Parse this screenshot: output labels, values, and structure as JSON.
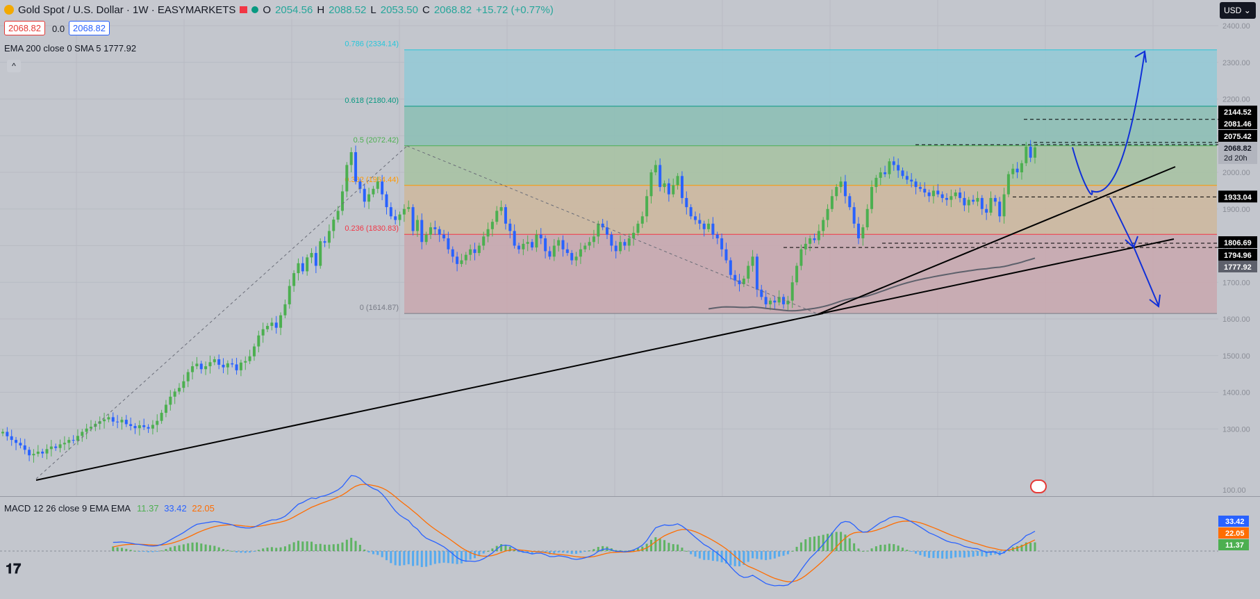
{
  "header": {
    "symbol": "Gold Spot / U.S. Dollar · 1W · EASYMARKETS",
    "o_label": "O",
    "o_val": "2054.56",
    "h_label": "H",
    "h_val": "2088.52",
    "l_label": "L",
    "l_val": "2053.50",
    "c_label": "C",
    "c_val": "2068.82",
    "change": "+15.72 (+0.77%)",
    "sell_price": "2068.82",
    "spread": "0.0",
    "buy_price": "2068.82"
  },
  "ema_legend": "EMA 200 close 0 SMA 5   1777.92",
  "macd_legend": {
    "label": "MACD 12 26 close 9 EMA EMA",
    "hist": "11.37",
    "macd": "33.42",
    "signal": "22.05"
  },
  "currency": "USD",
  "chart_data": {
    "type": "candlestick",
    "title": "Gold Spot / U.S. Dollar · 1W · EASYMARKETS",
    "price_axis": {
      "ylim": [
        1200,
        2450
      ],
      "ticks": [
        "2400.00",
        "2300.00",
        "2200.00",
        "2100.00",
        "2000.00",
        "1900.00",
        "1800.00",
        "1700.00",
        "1600.00",
        "1500.00",
        "1400.00",
        "1300.00"
      ]
    },
    "macd_axis": {
      "ylim": [
        -130,
        130
      ],
      "ticks": [
        "100.00"
      ]
    },
    "fibonacci": [
      {
        "label": "0.786 (2334.14)",
        "value": 2334.14,
        "color": "#26c6da",
        "fill": "#96c9d6"
      },
      {
        "label": "0.618 (2180.40)",
        "value": 2180.4,
        "color": "#089981",
        "fill": "#8ebfb6"
      },
      {
        "label": "0.5 (2072.42)",
        "value": 2072.42,
        "color": "#4caf50",
        "fill": "#a8c2a4"
      },
      {
        "label": "0.382 (1964.44)",
        "value": 1964.44,
        "color": "#ff9800",
        "fill": "#cdb8a0"
      },
      {
        "label": "0.236 (1830.83)",
        "value": 1830.83,
        "color": "#f23645",
        "fill": "#c9a9b0"
      },
      {
        "label": "0 (1614.87)",
        "value": 1614.87,
        "color": "#787b86",
        "fill": null
      }
    ],
    "price_labels": [
      {
        "text": "2144.52",
        "value": 2144.52,
        "bg": "#000000",
        "fg": "#ffffff"
      },
      {
        "text": "2081.46",
        "value": 2081.46,
        "bg": "#000000",
        "fg": "#ffffff"
      },
      {
        "text": "2075.42",
        "value": 2075.42,
        "bg": "#000000",
        "fg": "#ffffff"
      },
      {
        "text": "2068.82",
        "value": 2068.82,
        "bg": "#b2b5be",
        "fg": "#131722",
        "sub": "2d 20h"
      },
      {
        "text": "1933.04",
        "value": 1933.04,
        "bg": "#000000",
        "fg": "#ffffff"
      },
      {
        "text": "1806.69",
        "value": 1806.69,
        "bg": "#000000",
        "fg": "#ffffff"
      },
      {
        "text": "1794.96",
        "value": 1794.96,
        "bg": "#000000",
        "fg": "#ffffff"
      },
      {
        "text": "1777.92",
        "value": 1777.92,
        "bg": "#5d606b",
        "fg": "#ffffff"
      }
    ],
    "macd_labels": [
      {
        "text": "33.42",
        "value": 33.42,
        "bg": "#2962ff"
      },
      {
        "text": "22.05",
        "value": 22.05,
        "bg": "#ff6d00"
      },
      {
        "text": "11.37",
        "value": 11.37,
        "bg": "#4caf50"
      }
    ],
    "horizontal_levels": [
      2144.52,
      2081.46,
      2075.42,
      1933.04,
      1806.69,
      1794.96
    ],
    "closes": [
      1292,
      1280,
      1270,
      1262,
      1255,
      1243,
      1228,
      1232,
      1238,
      1233,
      1245,
      1252,
      1248,
      1258,
      1262,
      1270,
      1268,
      1281,
      1292,
      1301,
      1306,
      1314,
      1321,
      1326,
      1332,
      1320,
      1318,
      1325,
      1313,
      1308,
      1302,
      1310,
      1305,
      1301,
      1311,
      1322,
      1344,
      1366,
      1388,
      1402,
      1412,
      1430,
      1455,
      1471,
      1478,
      1463,
      1471,
      1482,
      1490,
      1475,
      1468,
      1479,
      1476,
      1460,
      1481,
      1485,
      1498,
      1525,
      1555,
      1572,
      1581,
      1590,
      1576,
      1610,
      1640,
      1690,
      1725,
      1752,
      1730,
      1768,
      1780,
      1745,
      1812,
      1808,
      1840,
      1871,
      1895,
      1948,
      2020,
      2055,
      1975,
      1955,
      1920,
      1940,
      1955,
      1975,
      1940,
      1905,
      1880,
      1870,
      1885,
      1900,
      1905,
      1840,
      1870,
      1810,
      1830,
      1850,
      1845,
      1830,
      1820,
      1790,
      1770,
      1750,
      1760,
      1775,
      1790,
      1780,
      1800,
      1825,
      1845,
      1865,
      1895,
      1905,
      1860,
      1840,
      1800,
      1790,
      1805,
      1810,
      1795,
      1830,
      1820,
      1785,
      1770,
      1800,
      1815,
      1790,
      1780,
      1760,
      1770,
      1790,
      1800,
      1810,
      1825,
      1860,
      1850,
      1830,
      1800,
      1785,
      1810,
      1800,
      1820,
      1835,
      1860,
      1880,
      1935,
      2000,
      2020,
      1960,
      1970,
      1940,
      1965,
      1990,
      1930,
      1905,
      1880,
      1870,
      1860,
      1845,
      1860,
      1830,
      1820,
      1790,
      1760,
      1720,
      1705,
      1695,
      1710,
      1745,
      1770,
      1680,
      1660,
      1640,
      1650,
      1645,
      1660,
      1640,
      1650,
      1700,
      1745,
      1790,
      1805,
      1820,
      1815,
      1840,
      1870,
      1900,
      1935,
      1960,
      1975,
      1935,
      1905,
      1860,
      1820,
      1850,
      1900,
      1960,
      1985,
      2000,
      1995,
      2030,
      2020,
      2005,
      1990,
      1980,
      1975,
      1960,
      1955,
      1945,
      1935,
      1950,
      1940,
      1930,
      1925,
      1935,
      1945,
      1930,
      1910,
      1925,
      1920,
      1930,
      1900,
      1890,
      1930,
      1920,
      1880,
      1940,
      1995,
      2010,
      2000,
      2025,
      2070,
      2040,
      2068
    ]
  }
}
